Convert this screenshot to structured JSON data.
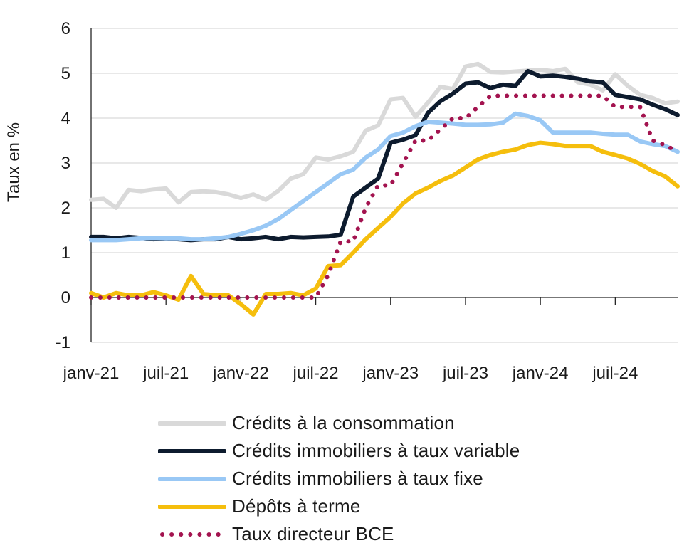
{
  "chart_data": {
    "type": "line",
    "title": "",
    "xlabel": "",
    "ylabel": "Taux en %",
    "ylim": [
      -1,
      6
    ],
    "yticks": [
      -1,
      0,
      1,
      2,
      3,
      4,
      5,
      6
    ],
    "grid": "horizontal",
    "legend_position": "bottom",
    "x_tick_labels": [
      "janv-21",
      "juil-21",
      "janv-22",
      "juil-22",
      "janv-23",
      "juil-23",
      "janv-24",
      "juil-24"
    ],
    "x_tick_months": [
      0,
      6,
      12,
      18,
      24,
      30,
      36,
      42
    ],
    "x_range_months": [
      0,
      47
    ],
    "series": [
      {
        "name": "Crédits à la consommation",
        "color": "#d9d9d9",
        "style": "solid",
        "values": [
          2.18,
          2.2,
          2.0,
          2.4,
          2.37,
          2.41,
          2.43,
          2.12,
          2.35,
          2.37,
          2.35,
          2.3,
          2.22,
          2.3,
          2.18,
          2.38,
          2.65,
          2.75,
          3.12,
          3.08,
          3.15,
          3.25,
          3.72,
          3.84,
          4.42,
          4.45,
          4.03,
          4.35,
          4.7,
          4.65,
          5.15,
          5.21,
          5.03,
          5.02,
          5.04,
          5.06,
          5.08,
          5.05,
          5.1,
          4.8,
          4.75,
          4.62,
          4.98,
          4.72,
          4.52,
          4.45,
          4.33,
          4.37
        ]
      },
      {
        "name": "Crédits immobiliers à taux variable",
        "color": "#0d1b2e",
        "style": "solid",
        "values": [
          1.35,
          1.35,
          1.32,
          1.35,
          1.33,
          1.3,
          1.32,
          1.3,
          1.28,
          1.3,
          1.3,
          1.35,
          1.3,
          1.32,
          1.35,
          1.3,
          1.35,
          1.34,
          1.35,
          1.36,
          1.4,
          2.25,
          2.45,
          2.65,
          3.45,
          3.52,
          3.62,
          4.12,
          4.38,
          4.55,
          4.77,
          4.8,
          4.67,
          4.75,
          4.72,
          5.05,
          4.93,
          4.95,
          4.92,
          4.88,
          4.82,
          4.8,
          4.52,
          4.47,
          4.42,
          4.3,
          4.2,
          4.07
        ]
      },
      {
        "name": "Crédits immobiliers à taux fixe",
        "color": "#99c8f5",
        "style": "solid",
        "values": [
          1.28,
          1.28,
          1.28,
          1.3,
          1.32,
          1.33,
          1.32,
          1.32,
          1.3,
          1.3,
          1.32,
          1.35,
          1.42,
          1.5,
          1.6,
          1.75,
          1.95,
          2.15,
          2.35,
          2.55,
          2.75,
          2.85,
          3.12,
          3.3,
          3.6,
          3.68,
          3.82,
          3.92,
          3.9,
          3.88,
          3.85,
          3.85,
          3.86,
          3.9,
          4.1,
          4.05,
          3.95,
          3.68,
          3.68,
          3.68,
          3.68,
          3.65,
          3.63,
          3.63,
          3.48,
          3.42,
          3.38,
          3.25
        ]
      },
      {
        "name": "Dépôts à terme",
        "color": "#f5be0d",
        "style": "solid",
        "values": [
          0.1,
          0.0,
          0.1,
          0.05,
          0.05,
          0.12,
          0.05,
          -0.05,
          0.48,
          0.08,
          0.05,
          0.05,
          -0.15,
          -0.38,
          0.08,
          0.08,
          0.1,
          0.05,
          0.2,
          0.7,
          0.72,
          1.0,
          1.3,
          1.55,
          1.8,
          2.1,
          2.32,
          2.45,
          2.6,
          2.72,
          2.9,
          3.08,
          3.18,
          3.25,
          3.3,
          3.4,
          3.45,
          3.42,
          3.38,
          3.38,
          3.38,
          3.25,
          3.18,
          3.1,
          2.98,
          2.82,
          2.7,
          2.48
        ]
      },
      {
        "name": "Taux directeur BCE",
        "color": "#a3134f",
        "style": "dotted",
        "values": [
          0.0,
          0.0,
          0.0,
          0.0,
          0.0,
          0.0,
          0.0,
          0.0,
          0.0,
          0.0,
          0.0,
          0.0,
          0.0,
          0.0,
          0.0,
          0.0,
          0.0,
          0.0,
          0.0,
          0.5,
          1.25,
          1.25,
          2.0,
          2.5,
          2.5,
          3.0,
          3.5,
          3.5,
          3.75,
          4.0,
          4.0,
          4.25,
          4.5,
          4.5,
          4.5,
          4.5,
          4.5,
          4.5,
          4.5,
          4.5,
          4.5,
          4.5,
          4.25,
          4.25,
          4.25,
          3.5,
          3.4,
          3.25
        ]
      }
    ]
  }
}
